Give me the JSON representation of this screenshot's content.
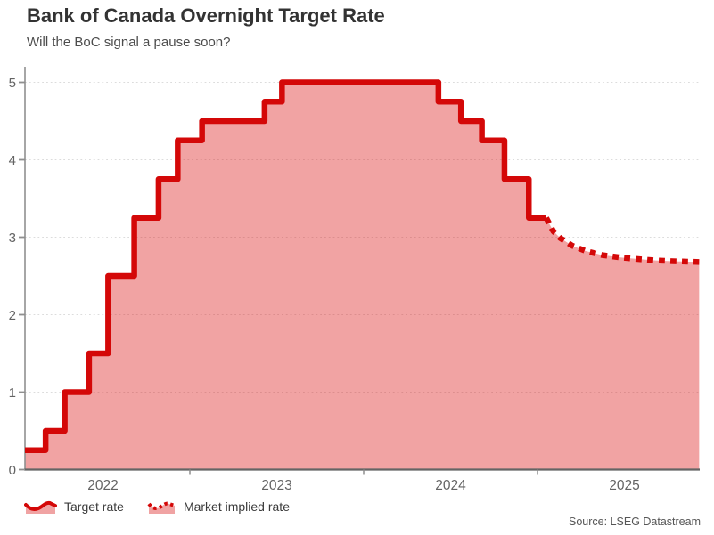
{
  "chart_data": {
    "type": "area",
    "title": "Bank of Canada Overnight Target Rate",
    "subtitle": "Will the BoC signal a pause soon?",
    "source": "Source: LSEG Datastream",
    "ylabel": "",
    "xlabel": "",
    "ylim": [
      0,
      5
    ],
    "y_ticks": [
      0,
      1,
      2,
      3,
      4,
      5
    ],
    "x_year_labels": [
      "2022",
      "2023",
      "2024",
      "2025"
    ],
    "x_year_values": [
      2022,
      2023,
      2024,
      2025
    ],
    "grid": "dotted-horizontal",
    "legend_position": "bottom-left",
    "series": [
      {
        "name": "Target rate",
        "draw": "step-area",
        "line_style": "solid",
        "color": "#d40808",
        "fill": "rgba(219,24,24,0.40)",
        "points": [
          [
            2022.0,
            0.25
          ],
          [
            2022.17,
            0.5
          ],
          [
            2022.28,
            1.0
          ],
          [
            2022.42,
            1.5
          ],
          [
            2022.53,
            2.5
          ],
          [
            2022.68,
            3.25
          ],
          [
            2022.82,
            3.75
          ],
          [
            2022.93,
            4.25
          ],
          [
            2023.07,
            4.5
          ],
          [
            2023.43,
            4.75
          ],
          [
            2023.53,
            5.0
          ],
          [
            2024.43,
            4.75
          ],
          [
            2024.56,
            4.5
          ],
          [
            2024.68,
            4.25
          ],
          [
            2024.81,
            3.75
          ],
          [
            2024.95,
            3.25
          ],
          [
            2025.05,
            3.25
          ]
        ]
      },
      {
        "name": "Market implied rate",
        "draw": "line-area",
        "line_style": "dotted",
        "color": "#d40808",
        "fill": "rgba(219,24,24,0.40)",
        "points": [
          [
            2025.05,
            3.25
          ],
          [
            2025.09,
            3.08
          ],
          [
            2025.13,
            2.99
          ],
          [
            2025.2,
            2.89
          ],
          [
            2025.28,
            2.82
          ],
          [
            2025.37,
            2.77
          ],
          [
            2025.47,
            2.74
          ],
          [
            2025.57,
            2.72
          ],
          [
            2025.68,
            2.7
          ],
          [
            2025.78,
            2.69
          ],
          [
            2025.93,
            2.68
          ]
        ]
      }
    ]
  }
}
